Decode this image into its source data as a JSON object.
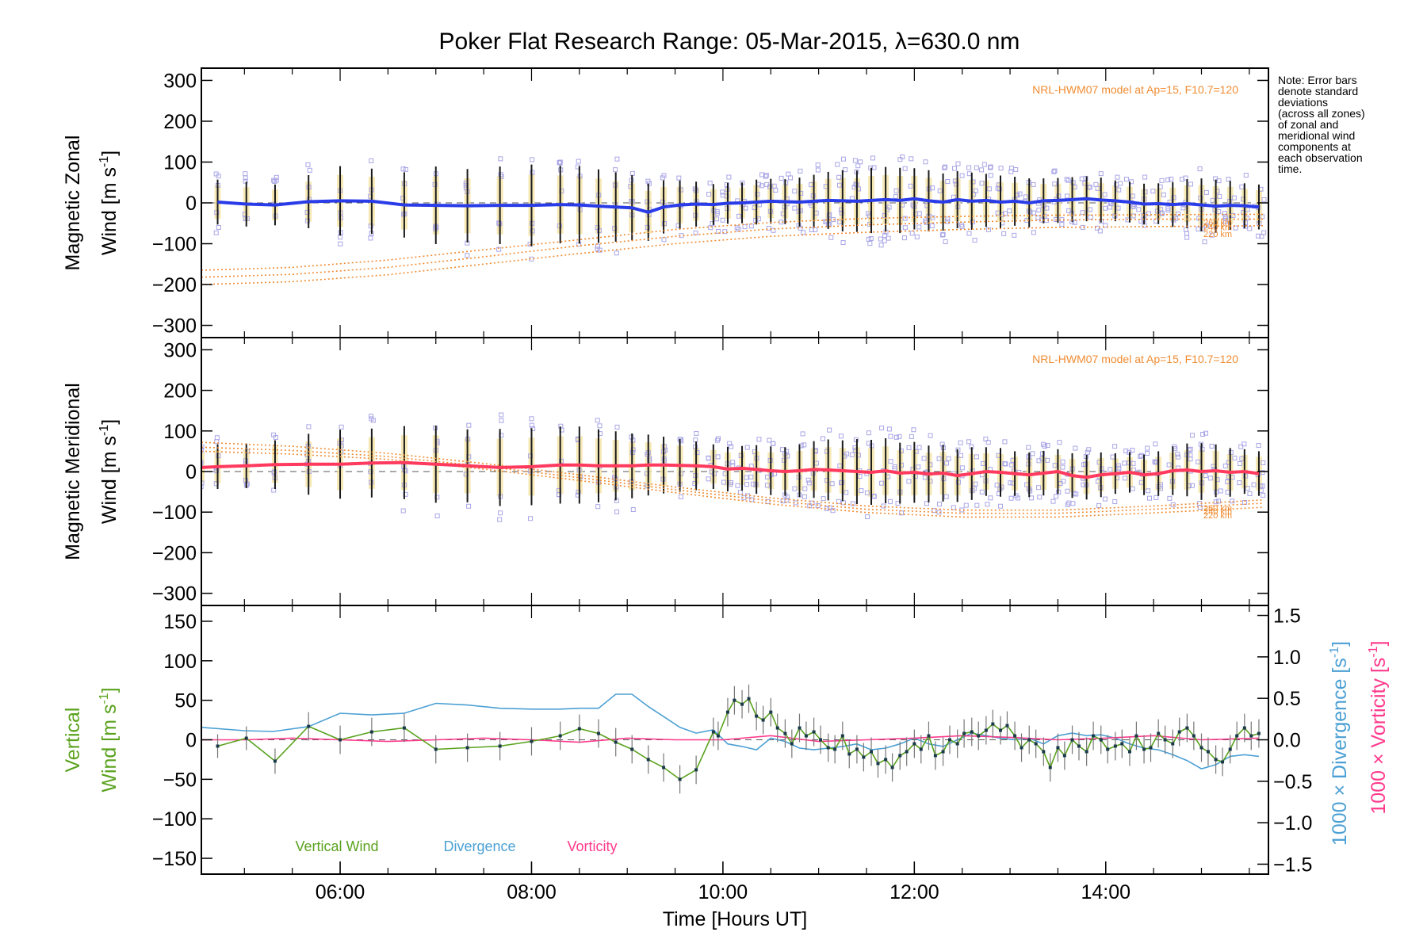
{
  "title": "Poker Flat Research Range: 05-Mar-2015, λ=630.0 nm",
  "note_lines": [
    "Note: Error bars",
    "denote standard",
    "deviations",
    "(across all zones)",
    "of zonal and",
    "meridional wind",
    "components at",
    "each observation",
    "time."
  ],
  "colors": {
    "zonal": "#2a3ce8",
    "meridional": "#ff3a5e",
    "vertical": "#5aa21e",
    "divergence": "#4ca0d4",
    "vorticity": "#ff3a8c",
    "model": "#f08c32",
    "scatter": "#a9a6e6",
    "errorbar": "#1a1a1a",
    "band": "#f4e3a4"
  },
  "chart_data": [
    {
      "type": "line",
      "panel": "zonal",
      "ylabel_line1": "Magnetic Zonal",
      "ylabel_line2": "Wind [m s",
      "ylabel_sup": "-1",
      "ylabel_end": "]",
      "xlim": [
        4.55,
        15.7
      ],
      "ylim": [
        -330,
        330
      ],
      "yticks": [
        -300,
        -200,
        -100,
        0,
        100,
        200,
        300
      ],
      "ytick_labels": [
        "−300",
        "−200",
        "−100",
        "0",
        "100",
        "200",
        "300"
      ],
      "model_label": "NRL-HWM07 model at Ap=15, F10.7=120",
      "altitude_labels": [
        "260 km",
        "240 km",
        "220 km"
      ],
      "obs_x": [
        4.72,
        5.02,
        5.32,
        5.67,
        6.0,
        6.33,
        6.67,
        7.0,
        7.33,
        7.67,
        8.0,
        8.3,
        8.5,
        8.7,
        8.88,
        9.05,
        9.22,
        9.38,
        9.55,
        9.72,
        9.9,
        10.05,
        10.2,
        10.35,
        10.5,
        10.65,
        10.8,
        10.95,
        11.1,
        11.25,
        11.4,
        11.55,
        11.7,
        11.85,
        12.0,
        12.15,
        12.3,
        12.45,
        12.6,
        12.75,
        12.9,
        13.05,
        13.2,
        13.35,
        13.5,
        13.65,
        13.8,
        13.95,
        14.1,
        14.25,
        14.4,
        14.55,
        14.7,
        14.85,
        15.0,
        15.15,
        15.3,
        15.45,
        15.6
      ],
      "obs_y": [
        2,
        -3,
        -5,
        3,
        5,
        4,
        -5,
        -6,
        -7,
        -6,
        -6,
        -4,
        -5,
        -8,
        -10,
        -12,
        -23,
        -10,
        -5,
        -3,
        -4,
        -1,
        0,
        2,
        4,
        3,
        2,
        4,
        6,
        5,
        4,
        6,
        8,
        6,
        10,
        5,
        2,
        8,
        4,
        6,
        2,
        4,
        0,
        5,
        6,
        8,
        10,
        7,
        5,
        2,
        -3,
        -2,
        -4,
        -2,
        -5,
        -8,
        -6,
        -7,
        -10
      ],
      "obs_err": [
        55,
        55,
        50,
        65,
        85,
        80,
        80,
        95,
        90,
        95,
        100,
        95,
        95,
        90,
        85,
        80,
        70,
        65,
        60,
        55,
        50,
        50,
        50,
        55,
        55,
        55,
        60,
        65,
        70,
        75,
        75,
        80,
        80,
        80,
        75,
        75,
        70,
        70,
        70,
        65,
        65,
        60,
        60,
        55,
        55,
        55,
        55,
        55,
        50,
        50,
        50,
        50,
        55,
        60,
        65,
        65,
        60,
        55,
        55
      ],
      "model_x": [
        4.55,
        5.5,
        6.5,
        7.5,
        8.5,
        9.5,
        10.5,
        11.5,
        12.5,
        13.5,
        14.5,
        15.65
      ],
      "model_series": [
        {
          "name": "260 km",
          "y": [
            -165,
            -158,
            -140,
            -115,
            -90,
            -65,
            -48,
            -38,
            -33,
            -30,
            -29,
            -28
          ]
        },
        {
          "name": "240 km",
          "y": [
            -182,
            -175,
            -158,
            -132,
            -105,
            -82,
            -64,
            -54,
            -47,
            -42,
            -40,
            -40
          ]
        },
        {
          "name": "220 km",
          "y": [
            -200,
            -193,
            -176,
            -150,
            -124,
            -100,
            -82,
            -72,
            -65,
            -60,
            -58,
            -56
          ]
        }
      ]
    },
    {
      "type": "line",
      "panel": "meridional",
      "ylabel_line1": "Magnetic Meridional",
      "ylabel_line2": "Wind [m s",
      "ylabel_sup": "-1",
      "ylabel_end": "]",
      "xlim": [
        4.55,
        15.7
      ],
      "ylim": [
        -330,
        330
      ],
      "yticks": [
        -300,
        -200,
        -100,
        0,
        100,
        200,
        300
      ],
      "ytick_labels": [
        "−300",
        "−200",
        "−100",
        "0",
        "100",
        "200",
        "300"
      ],
      "model_label": "NRL-HWM07 model at Ap=15, F10.7=120",
      "altitude_labels": [
        "260 km",
        "240 km",
        "220 km"
      ],
      "obs_x": [
        4.55,
        4.72,
        5.02,
        5.32,
        5.67,
        6.0,
        6.33,
        6.67,
        7.0,
        7.33,
        7.67,
        8.0,
        8.3,
        8.5,
        8.7,
        8.88,
        9.05,
        9.22,
        9.38,
        9.55,
        9.72,
        9.9,
        10.05,
        10.2,
        10.35,
        10.5,
        10.65,
        10.8,
        10.95,
        11.1,
        11.25,
        11.4,
        11.55,
        11.7,
        11.85,
        12.0,
        12.15,
        12.3,
        12.45,
        12.6,
        12.75,
        12.9,
        13.05,
        13.2,
        13.35,
        13.5,
        13.65,
        13.8,
        13.95,
        14.1,
        14.25,
        14.4,
        14.55,
        14.7,
        14.85,
        15.0,
        15.15,
        15.3,
        15.45,
        15.6
      ],
      "obs_y": [
        10,
        12,
        14,
        17,
        18,
        18,
        21,
        22,
        18,
        14,
        10,
        12,
        16,
        16,
        14,
        14,
        14,
        16,
        16,
        15,
        14,
        12,
        6,
        8,
        5,
        2,
        0,
        2,
        5,
        4,
        2,
        0,
        -2,
        2,
        -4,
        -2,
        -6,
        -4,
        -10,
        -5,
        0,
        -2,
        -5,
        -8,
        -4,
        0,
        -10,
        -14,
        -8,
        -5,
        -2,
        -8,
        -5,
        2,
        4,
        0,
        2,
        -2,
        0,
        -5
      ],
      "obs_err": [
        50,
        55,
        55,
        60,
        75,
        85,
        85,
        90,
        95,
        90,
        95,
        95,
        95,
        95,
        90,
        85,
        80,
        75,
        70,
        65,
        60,
        55,
        55,
        55,
        60,
        60,
        60,
        65,
        70,
        75,
        75,
        80,
        80,
        80,
        75,
        75,
        70,
        70,
        65,
        65,
        60,
        60,
        55,
        55,
        55,
        55,
        55,
        55,
        55,
        50,
        50,
        50,
        55,
        60,
        65,
        70,
        65,
        60,
        55,
        55
      ],
      "model_x": [
        4.55,
        5.5,
        6.5,
        7.5,
        8.5,
        9.5,
        10.5,
        11.5,
        12.5,
        13.5,
        14.5,
        15.65
      ],
      "model_series": [
        {
          "name": "260 km",
          "y": [
            72,
            62,
            45,
            20,
            -8,
            -38,
            -65,
            -85,
            -95,
            -95,
            -85,
            -70
          ]
        },
        {
          "name": "240 km",
          "y": [
            60,
            52,
            37,
            13,
            -15,
            -45,
            -72,
            -93,
            -103,
            -103,
            -93,
            -78
          ]
        },
        {
          "name": "220 km",
          "y": [
            50,
            43,
            30,
            6,
            -22,
            -52,
            -80,
            -101,
            -112,
            -112,
            -102,
            -88
          ]
        }
      ]
    },
    {
      "type": "line",
      "panel": "vertical",
      "ylabel_line1": "Vertical",
      "ylabel_line2": "Wind [m s",
      "ylabel_sup": "-1",
      "ylabel_end": "]",
      "y2label_a": "1000 × Divergence [s",
      "y2label_b": "1000 × Vorticity [s",
      "y2label_sup": "-1",
      "y2label_end": "]",
      "xlim": [
        4.55,
        15.7
      ],
      "ylim": [
        -170,
        170
      ],
      "yticks": [
        -150,
        -100,
        -50,
        0,
        50,
        100,
        150
      ],
      "ytick_labels": [
        "−150",
        "−100",
        "−50",
        "0",
        "50",
        "100",
        "150"
      ],
      "y2lim": [
        -1.62,
        1.62
      ],
      "y2ticks": [
        -1.5,
        -1.0,
        -0.5,
        0.0,
        0.5,
        1.0,
        1.5
      ],
      "y2tick_labels": [
        "−1.5",
        "−1.0",
        "−0.5",
        "0.0",
        "0.5",
        "1.0",
        "1.5"
      ],
      "xticks": [
        6,
        8,
        10,
        12,
        14
      ],
      "xtick_labels": [
        "06:00",
        "08:00",
        "10:00",
        "12:00",
        "14:00"
      ],
      "xlabel": "Time [Hours UT]",
      "legend": [
        "Vertical Wind",
        "Divergence",
        "Vorticity"
      ],
      "vertical_x": [
        4.72,
        5.02,
        5.32,
        5.67,
        6.0,
        6.33,
        6.67,
        7.0,
        7.33,
        7.67,
        8.0,
        8.3,
        8.5,
        8.7,
        8.88,
        9.05,
        9.22,
        9.38,
        9.55,
        9.72,
        9.9,
        9.95,
        10.05,
        10.12,
        10.2,
        10.27,
        10.35,
        10.42,
        10.5,
        10.57,
        10.65,
        10.72,
        10.8,
        10.87,
        10.95,
        11.02,
        11.1,
        11.17,
        11.25,
        11.32,
        11.4,
        11.47,
        11.55,
        11.62,
        11.7,
        11.77,
        11.85,
        11.92,
        12.0,
        12.07,
        12.15,
        12.22,
        12.3,
        12.37,
        12.45,
        12.52,
        12.6,
        12.67,
        12.75,
        12.82,
        12.9,
        12.97,
        13.05,
        13.12,
        13.2,
        13.27,
        13.35,
        13.42,
        13.5,
        13.57,
        13.65,
        13.72,
        13.8,
        13.87,
        13.95,
        14.02,
        14.1,
        14.17,
        14.25,
        14.32,
        14.4,
        14.47,
        14.55,
        14.62,
        14.7,
        14.77,
        14.85,
        14.92,
        15.0,
        15.07,
        15.15,
        15.22,
        15.3,
        15.37,
        15.45,
        15.52,
        15.6
      ],
      "vertical_y": [
        -8,
        2,
        -27,
        17,
        0,
        10,
        15,
        -12,
        -10,
        -8,
        -2,
        5,
        14,
        8,
        -3,
        -12,
        -25,
        -35,
        -50,
        -38,
        10,
        5,
        35,
        50,
        45,
        52,
        30,
        25,
        35,
        15,
        8,
        -5,
        15,
        5,
        10,
        0,
        -10,
        -12,
        5,
        -18,
        -12,
        -22,
        -15,
        -30,
        -25,
        -35,
        -20,
        -15,
        -5,
        -12,
        5,
        -20,
        -15,
        0,
        -5,
        8,
        10,
        5,
        12,
        20,
        12,
        18,
        5,
        -10,
        0,
        -5,
        -15,
        -35,
        -10,
        -20,
        0,
        -8,
        -15,
        5,
        0,
        -12,
        -8,
        -5,
        -15,
        5,
        -12,
        -10,
        8,
        0,
        -5,
        10,
        15,
        5,
        -10,
        -15,
        -25,
        -28,
        -12,
        5,
        15,
        5,
        8
      ],
      "vertical_err": [
        15,
        15,
        16,
        18,
        18,
        18,
        18,
        18,
        18,
        18,
        18,
        18,
        18,
        18,
        18,
        18,
        18,
        18,
        18,
        18,
        18,
        18,
        18,
        18,
        18,
        18,
        18,
        18,
        18,
        18,
        18,
        18,
        18,
        18,
        18,
        18,
        18,
        18,
        18,
        18,
        18,
        18,
        18,
        18,
        18,
        18,
        18,
        18,
        18,
        18,
        18,
        18,
        18,
        18,
        18,
        18,
        18,
        18,
        18,
        18,
        18,
        18,
        18,
        18,
        18,
        18,
        18,
        18,
        18,
        18,
        18,
        18,
        18,
        18,
        18,
        18,
        18,
        18,
        18,
        18,
        18,
        18,
        18,
        18,
        18,
        18,
        18,
        18,
        18,
        18,
        18,
        18,
        18,
        18,
        18,
        18,
        18
      ],
      "divergence_x": [
        4.55,
        5.0,
        5.3,
        5.67,
        6.0,
        6.33,
        6.67,
        7.0,
        7.33,
        7.67,
        8.0,
        8.3,
        8.5,
        8.7,
        8.88,
        9.05,
        9.22,
        9.38,
        9.55,
        9.72,
        9.9,
        10.05,
        10.2,
        10.35,
        10.5,
        10.65,
        10.8,
        10.95,
        11.1,
        11.25,
        11.4,
        11.55,
        11.7,
        11.85,
        12.0,
        12.15,
        12.3,
        12.45,
        12.6,
        12.75,
        12.9,
        13.05,
        13.2,
        13.35,
        13.5,
        13.65,
        13.8,
        13.95,
        14.1,
        14.25,
        14.4,
        14.55,
        14.7,
        14.85,
        15.0,
        15.15,
        15.3,
        15.45,
        15.6
      ],
      "divergence_y": [
        0.15,
        0.11,
        0.1,
        0.16,
        0.32,
        0.3,
        0.32,
        0.44,
        0.42,
        0.38,
        0.37,
        0.37,
        0.38,
        0.38,
        0.55,
        0.55,
        0.4,
        0.28,
        0.15,
        0.08,
        0.12,
        -0.05,
        -0.08,
        -0.12,
        0.02,
        -0.02,
        -0.1,
        -0.12,
        -0.1,
        -0.08,
        -0.05,
        -0.12,
        -0.1,
        -0.05,
        0.02,
        -0.05,
        -0.08,
        0.0,
        0.08,
        0.05,
        0.02,
        0.0,
        0.02,
        -0.05,
        0.05,
        0.08,
        0.05,
        0.06,
        0.02,
        -0.05,
        -0.1,
        -0.12,
        -0.18,
        -0.25,
        -0.35,
        -0.3,
        -0.2,
        -0.18,
        -0.2
      ],
      "vorticity_x": [
        4.55,
        5.0,
        5.5,
        6.0,
        6.5,
        7.0,
        7.5,
        8.0,
        8.5,
        9.0,
        9.5,
        10.0,
        10.5,
        11.0,
        11.5,
        12.0,
        12.5,
        13.0,
        13.5,
        14.0,
        14.5,
        15.0,
        15.6
      ],
      "vorticity_y": [
        0.0,
        0.0,
        0.02,
        0.0,
        -0.02,
        0.0,
        0.02,
        0.0,
        -0.03,
        0.02,
        0.0,
        0.0,
        0.05,
        -0.02,
        0.0,
        0.02,
        0.05,
        0.03,
        0.0,
        0.02,
        0.05,
        0.0,
        0.02
      ]
    }
  ]
}
